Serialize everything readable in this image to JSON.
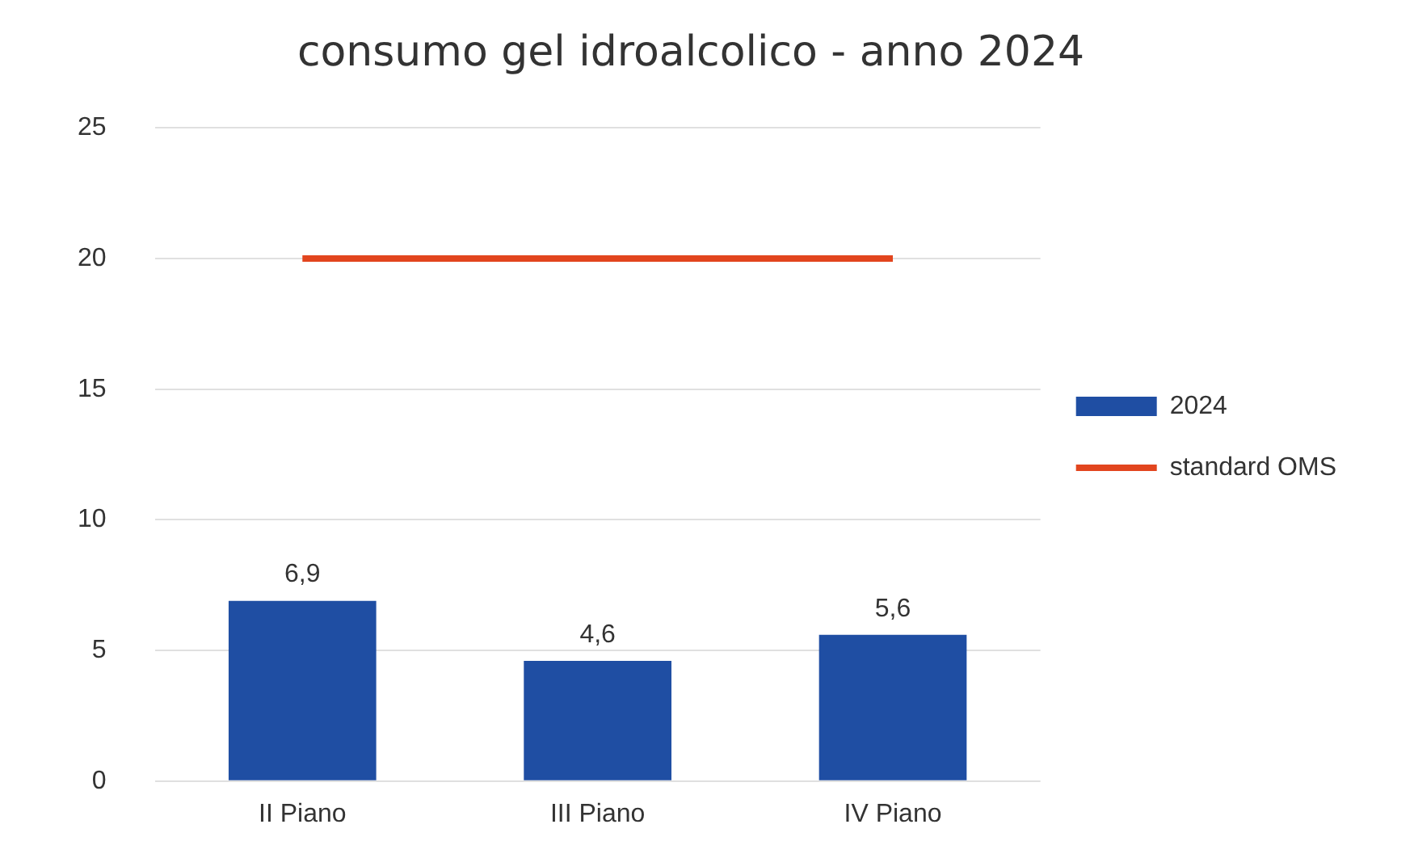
{
  "chart_data": {
    "type": "bar",
    "title": "consumo gel idroalcolico - anno 2024",
    "categories": [
      "II Piano",
      "III Piano",
      "IV Piano"
    ],
    "series": [
      {
        "name": "2024",
        "color": "#1f4ea3",
        "values": [
          6.9,
          4.6,
          5.6
        ],
        "value_labels": [
          "6,9",
          "4,6",
          "5,6"
        ]
      },
      {
        "name": "standard OMS",
        "type": "line",
        "color": "#e2451e",
        "values": [
          20,
          20,
          20
        ]
      }
    ],
    "ylim": [
      0,
      25
    ],
    "yticks": [
      0,
      5,
      10,
      15,
      20,
      25
    ],
    "grid": "y",
    "legend": "right",
    "marker": "none"
  }
}
